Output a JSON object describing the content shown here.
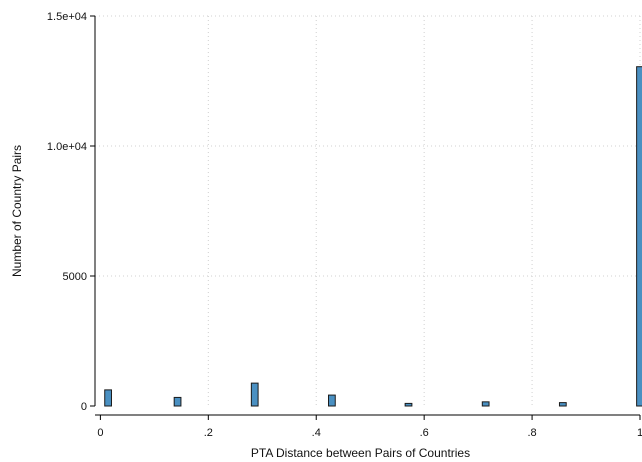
{
  "chart_data": {
    "type": "bar",
    "title": "",
    "xlabel": "PTA Distance between Pairs of Countries",
    "ylabel": "Number of Country Pairs",
    "x": [
      0.0143,
      0.143,
      0.286,
      0.429,
      0.571,
      0.714,
      0.857,
      1.0
    ],
    "values": [
      620,
      330,
      880,
      420,
      100,
      160,
      130,
      13050
    ],
    "bar_width": 0.0125,
    "xlim": [
      -0.01,
      1.0
    ],
    "ylim": [
      0,
      15000
    ],
    "x_ticks": [
      {
        "value": 0,
        "label": "0"
      },
      {
        "value": 0.2,
        "label": ".2"
      },
      {
        "value": 0.4,
        "label": ".4"
      },
      {
        "value": 0.6,
        "label": ".6"
      },
      {
        "value": 0.8,
        "label": ".8"
      },
      {
        "value": 1.0,
        "label": "1"
      }
    ],
    "y_ticks": [
      {
        "value": 0,
        "label": "0"
      },
      {
        "value": 5000,
        "label": "5000"
      },
      {
        "value": 10000,
        "label": "1.0e+04"
      },
      {
        "value": 15000,
        "label": "1.5e+04"
      }
    ],
    "grid": true,
    "colors": {
      "bar_fill": "#4a90c2",
      "bar_edge": "#1a1a1a",
      "grid": "#d0d0d0"
    }
  }
}
